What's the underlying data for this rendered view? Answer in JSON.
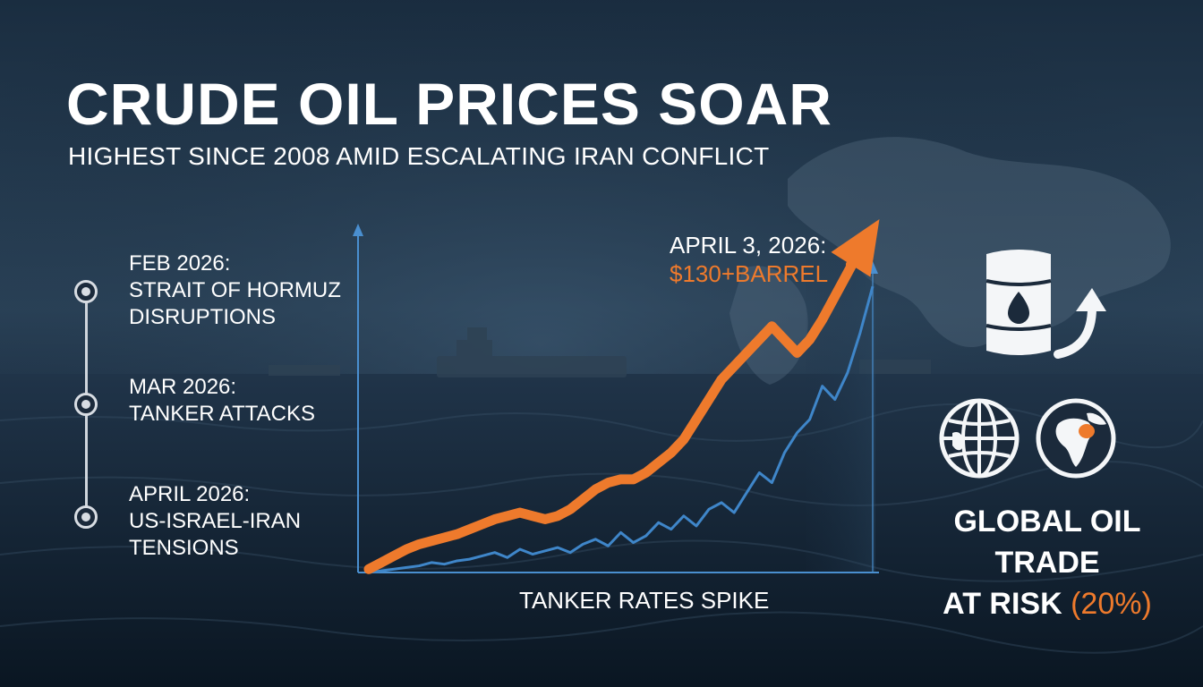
{
  "header": {
    "title": "CRUDE OIL PRICES SOAR",
    "subtitle": "HIGHEST SINCE 2008 AMID ESCALATING IRAN CONFLICT"
  },
  "timeline": [
    {
      "line1": "FEB 2026:",
      "line2": "STRAIT OF HORMUZ",
      "line3": "DISRUPTIONS"
    },
    {
      "line1": "MAR 2026:",
      "line2": "TANKER ATTACKS",
      "line3": ""
    },
    {
      "line1": "APRIL 2026:",
      "line2": "US-ISRAEL-IRAN",
      "line3": "TENSIONS"
    }
  ],
  "callout": {
    "date": "APRIL 3, 2026:",
    "price": "$130+BARREL"
  },
  "risk": {
    "line1": "GLOBAL OIL TRADE",
    "line2_prefix": "AT RISK ",
    "line2_highlight": "(20%)"
  },
  "colors": {
    "oil_price_line": "#ee7a2c",
    "tanker_rate_line": "#3f86c9",
    "axis": "#4a8fd0",
    "accent": "#ee7a2c"
  },
  "icons": [
    "oil-barrel-icon",
    "up-arrow-icon",
    "globe-grid-icon",
    "africa-globe-icon"
  ],
  "chart_data": {
    "type": "line",
    "title": "",
    "xlabel": "TANKER RATES SPIKE",
    "ylabel": "",
    "ylim": [
      0,
      100
    ],
    "x": [
      0,
      1,
      2,
      3,
      4,
      5,
      6,
      7,
      8,
      9,
      10,
      11,
      12,
      13,
      14,
      15,
      16,
      17,
      18,
      19,
      20,
      21,
      22,
      23,
      24,
      25,
      26,
      27,
      28,
      29,
      30,
      31,
      32,
      33,
      34,
      35,
      36,
      37,
      38,
      39,
      40
    ],
    "series": [
      {
        "key": "oil",
        "values": [
          1,
          3,
          5,
          7,
          8.5,
          9.5,
          10.5,
          11.5,
          13,
          14.5,
          16,
          17,
          18,
          17,
          16,
          17,
          19,
          22,
          25,
          27,
          28,
          28,
          30,
          33,
          36,
          40,
          46,
          52,
          58,
          62,
          66,
          70,
          74,
          70,
          66,
          70,
          76,
          83,
          90,
          97,
          103
        ]
      },
      {
        "key": "tanker",
        "values": [
          0,
          0.5,
          1,
          1.5,
          2,
          3,
          2.5,
          3.5,
          4,
          5,
          6,
          4.5,
          7,
          5.5,
          6.5,
          7.5,
          6,
          8.5,
          10,
          8,
          12,
          9,
          11,
          15,
          13,
          17,
          14,
          19,
          21,
          18,
          24,
          30,
          27,
          36,
          42,
          46,
          56,
          52,
          60,
          72,
          86
        ]
      }
    ]
  }
}
